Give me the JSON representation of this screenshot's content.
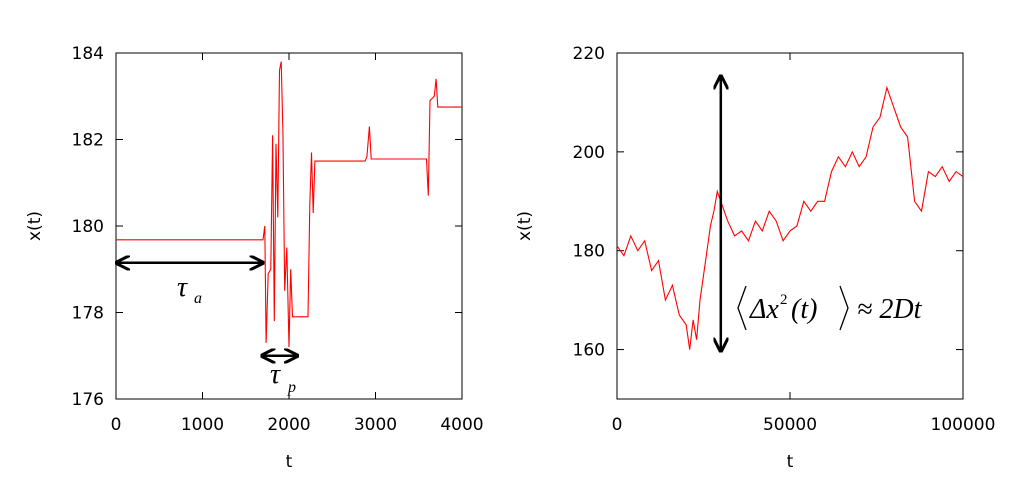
{
  "chart_data": [
    {
      "type": "line",
      "xlabel": "t",
      "ylabel": "x(t)",
      "xlim": [
        0,
        4000
      ],
      "ylim": [
        176,
        184
      ],
      "x_ticks": [
        "0",
        "1000",
        "2000",
        "3000",
        "4000"
      ],
      "y_ticks": [
        "176",
        "178",
        "180",
        "182",
        "184"
      ],
      "series_color": "#ff0000",
      "points": [
        [
          0,
          179.68
        ],
        [
          1700,
          179.68
        ],
        [
          1720,
          180.0
        ],
        [
          1735,
          177.3
        ],
        [
          1760,
          178.9
        ],
        [
          1790,
          179.0
        ],
        [
          1810,
          182.1
        ],
        [
          1830,
          177.8
        ],
        [
          1850,
          181.9
        ],
        [
          1870,
          180.2
        ],
        [
          1890,
          183.6
        ],
        [
          1910,
          183.8
        ],
        [
          1930,
          182.2
        ],
        [
          1950,
          178.5
        ],
        [
          1975,
          179.5
        ],
        [
          2000,
          177.2
        ],
        [
          2020,
          179.0
        ],
        [
          2040,
          177.9
        ],
        [
          2220,
          177.9
        ],
        [
          2240,
          180.5
        ],
        [
          2260,
          181.7
        ],
        [
          2280,
          180.3
        ],
        [
          2300,
          181.5
        ],
        [
          2880,
          181.5
        ],
        [
          2900,
          181.6
        ],
        [
          2930,
          182.3
        ],
        [
          2950,
          181.55
        ],
        [
          3590,
          181.55
        ],
        [
          3610,
          180.7
        ],
        [
          3630,
          182.9
        ],
        [
          3680,
          183.0
        ],
        [
          3700,
          183.4
        ],
        [
          3720,
          182.75
        ],
        [
          4000,
          182.75
        ]
      ],
      "annotations": [
        {
          "kind": "double-arrow",
          "x_range": [
            0,
            1680
          ],
          "y": 179.15,
          "label": "τ",
          "sub": "a"
        },
        {
          "kind": "double-arrow",
          "x_range": [
            1680,
            2080
          ],
          "y": 177.0,
          "label": "τ",
          "sub": "p"
        }
      ]
    },
    {
      "type": "line",
      "xlabel": "t",
      "ylabel": "x(t)",
      "xlim": [
        0,
        100000
      ],
      "ylim": [
        150,
        220
      ],
      "x_ticks": [
        "0",
        "50000",
        "100000"
      ],
      "y_ticks": [
        "160",
        "180",
        "200",
        "220"
      ],
      "series_color": "#ff0000",
      "points": [
        [
          0,
          181
        ],
        [
          2000,
          179
        ],
        [
          4000,
          183
        ],
        [
          6000,
          180
        ],
        [
          8000,
          182
        ],
        [
          10000,
          176
        ],
        [
          12000,
          178
        ],
        [
          14000,
          170
        ],
        [
          16000,
          173
        ],
        [
          18000,
          167
        ],
        [
          20000,
          165
        ],
        [
          21000,
          160
        ],
        [
          22000,
          166
        ],
        [
          23000,
          162
        ],
        [
          24000,
          170
        ],
        [
          25000,
          175
        ],
        [
          26000,
          180
        ],
        [
          27000,
          185
        ],
        [
          28000,
          188
        ],
        [
          29000,
          192
        ],
        [
          30000,
          190
        ],
        [
          32000,
          186
        ],
        [
          34000,
          183
        ],
        [
          36000,
          184
        ],
        [
          38000,
          182
        ],
        [
          40000,
          186
        ],
        [
          42000,
          184
        ],
        [
          44000,
          188
        ],
        [
          46000,
          186
        ],
        [
          48000,
          182
        ],
        [
          50000,
          184
        ],
        [
          52000,
          185
        ],
        [
          54000,
          190
        ],
        [
          56000,
          188
        ],
        [
          58000,
          190
        ],
        [
          60000,
          190
        ],
        [
          62000,
          196
        ],
        [
          64000,
          199
        ],
        [
          66000,
          197
        ],
        [
          68000,
          200
        ],
        [
          70000,
          197
        ],
        [
          72000,
          199
        ],
        [
          74000,
          205
        ],
        [
          76000,
          207
        ],
        [
          78000,
          213
        ],
        [
          80000,
          209
        ],
        [
          82000,
          205
        ],
        [
          84000,
          203
        ],
        [
          86000,
          190
        ],
        [
          88000,
          188
        ],
        [
          90000,
          196
        ],
        [
          92000,
          195
        ],
        [
          94000,
          197
        ],
        [
          96000,
          194
        ],
        [
          98000,
          196
        ],
        [
          100000,
          195
        ]
      ],
      "annotations": [
        {
          "kind": "double-arrow-vertical",
          "x": 30000,
          "y_range": [
            160,
            215
          ]
        },
        {
          "kind": "formula",
          "text": "⟨Δx²(t)⟩ ≈ 2Dt"
        }
      ]
    }
  ],
  "labels": {
    "tau": "τ",
    "sub_a": "a",
    "sub_p": "p",
    "formula_delta": "Δx",
    "formula_sup": "2",
    "formula_t": "(t)",
    "formula_rhs": "≈ 2Dt"
  }
}
